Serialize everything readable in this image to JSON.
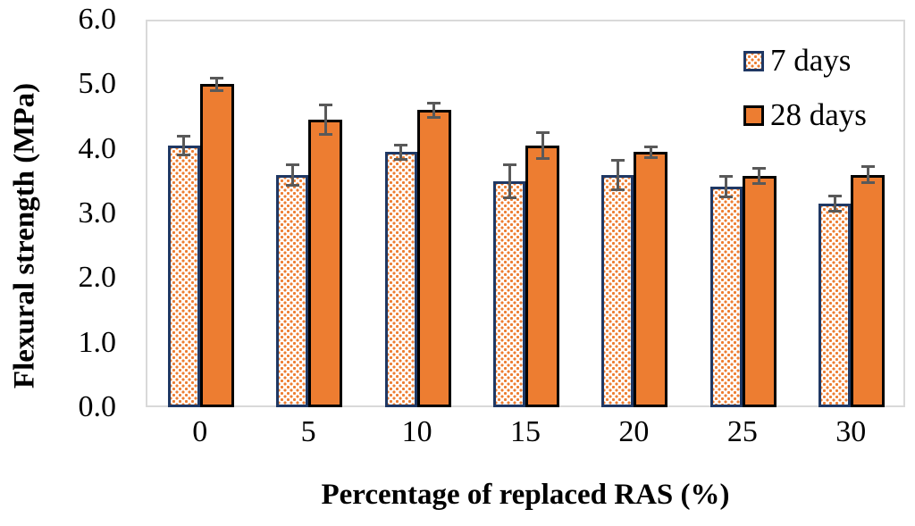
{
  "chart_data": {
    "type": "bar",
    "title": "",
    "xlabel": "Percentage of replaced RAS (%)",
    "ylabel": "Flexural strength (MPa)",
    "categories": [
      "0",
      "5",
      "10",
      "15",
      "20",
      "25",
      "30"
    ],
    "y_ticks": [
      "6.0",
      "5.0",
      "4.0",
      "3.0",
      "2.0",
      "1.0",
      "0.0"
    ],
    "ylim": [
      0,
      6
    ],
    "grid": false,
    "legend_position": "top-right-inside",
    "series": [
      {
        "name": "7 days",
        "values": [
          4.05,
          3.6,
          3.95,
          3.5,
          3.6,
          3.42,
          3.15
        ],
        "errors": [
          0.17,
          0.18,
          0.13,
          0.28,
          0.25,
          0.18,
          0.14
        ],
        "fill": "orange-dot-pattern-on-white",
        "border_color": "#1F3864"
      },
      {
        "name": "28 days",
        "values": [
          5.0,
          4.45,
          4.6,
          4.05,
          3.95,
          3.58,
          3.6
        ],
        "errors": [
          0.12,
          0.25,
          0.13,
          0.22,
          0.1,
          0.14,
          0.15
        ],
        "fill": "#ED7D31",
        "border_color": "#000000"
      }
    ],
    "colors": {
      "orange": "#ED7D31",
      "navy_border": "#1F3864",
      "error_bar_gray": "#595959",
      "plot_frame_gray": "#D9D9D9"
    }
  }
}
